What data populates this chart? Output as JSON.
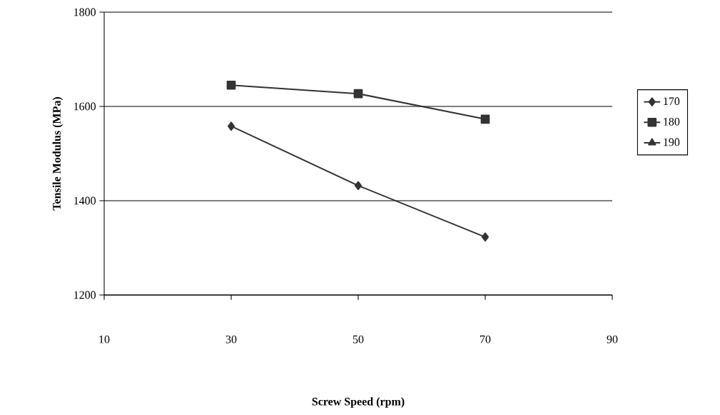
{
  "chart_data": {
    "type": "line",
    "xlabel": "Screw Speed (rpm)",
    "ylabel": "Tensile Modulus (MPa)",
    "x": [
      30,
      50,
      70
    ],
    "series": [
      {
        "name": "170",
        "color": "#333333",
        "marker": "diamond",
        "values": [
          1558,
          1432,
          1323
        ]
      },
      {
        "name": "180",
        "color": "#333333",
        "marker": "square",
        "values": [
          1645,
          1627,
          1573
        ]
      },
      {
        "name": "190",
        "color": "#333333",
        "marker": "triangle",
        "values": [
          null,
          null,
          null
        ]
      }
    ],
    "xlim": [
      10,
      90
    ],
    "xticks": [
      10,
      30,
      50,
      70,
      90
    ],
    "ylim": [
      1200,
      1800
    ],
    "yticks": [
      1200,
      1400,
      1600,
      1800
    ],
    "grid": "y",
    "legend": "right",
    "line_style": "solid"
  }
}
